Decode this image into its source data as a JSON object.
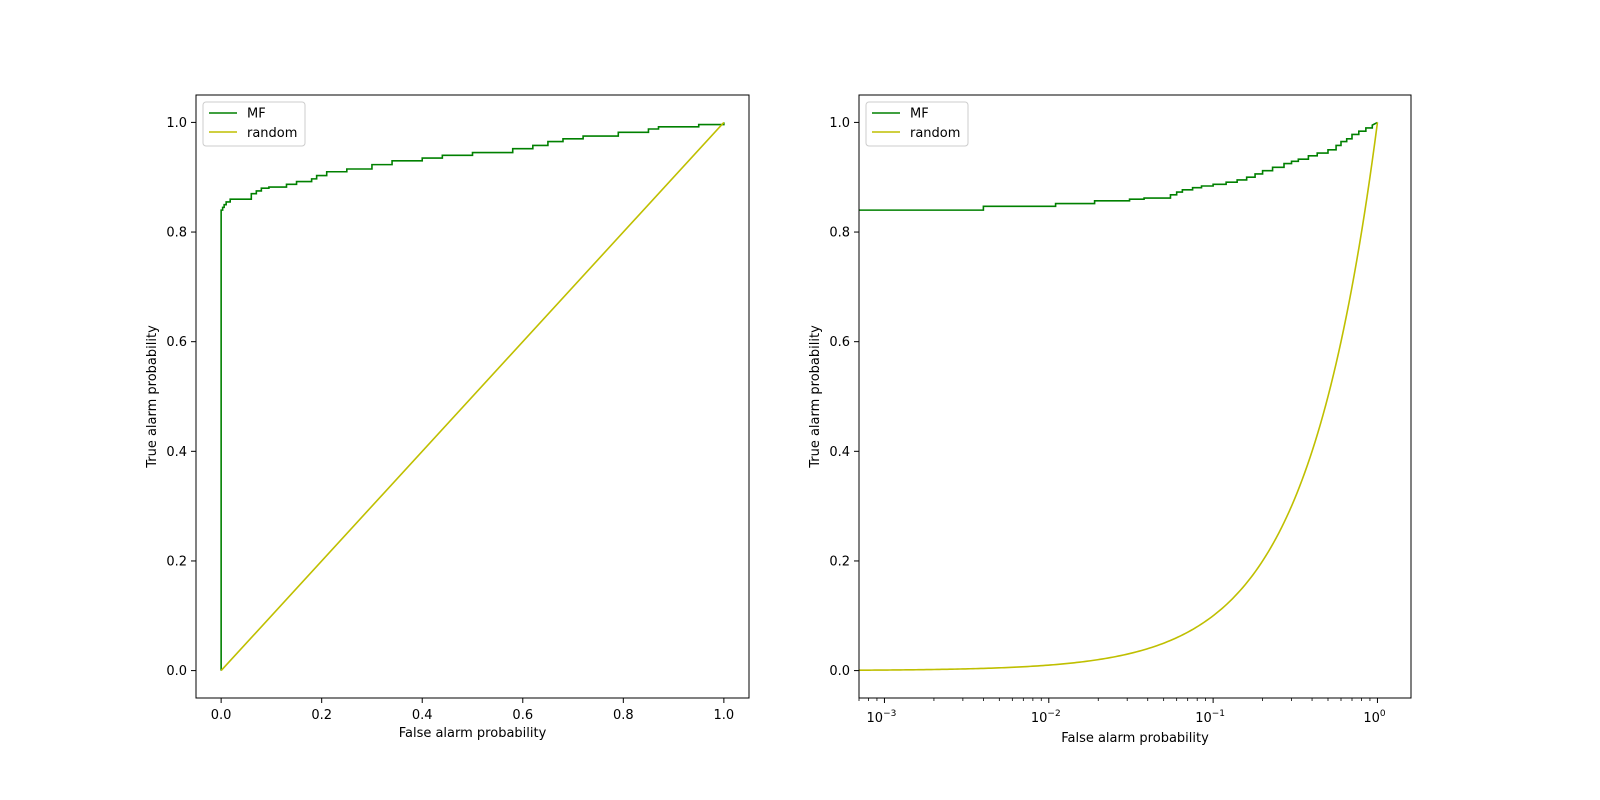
{
  "colors": {
    "mf": "#008000",
    "random": "#bfbf00",
    "axes": "#000000",
    "legend_border": "#cccccc"
  },
  "chart_data": [
    {
      "type": "line",
      "xlabel": "False alarm probability",
      "ylabel": "True alarm probability",
      "xscale": "linear",
      "xlim": [
        -0.05,
        1.05
      ],
      "ylim": [
        -0.05,
        1.05
      ],
      "xticks": [
        0.0,
        0.2,
        0.4,
        0.6,
        0.8,
        1.0
      ],
      "xtick_labels": [
        "0.0",
        "0.2",
        "0.4",
        "0.6",
        "0.8",
        "1.0"
      ],
      "yticks": [
        0.0,
        0.2,
        0.4,
        0.6,
        0.8,
        1.0
      ],
      "ytick_labels": [
        "0.0",
        "0.2",
        "0.4",
        "0.6",
        "0.8",
        "1.0"
      ],
      "legend_position": "upper left",
      "series": [
        {
          "name": "MF",
          "color": "#008000",
          "x": [
            0.0,
            0.0,
            0.003,
            0.003,
            0.006,
            0.006,
            0.01,
            0.01,
            0.018,
            0.018,
            0.06,
            0.06,
            0.07,
            0.07,
            0.08,
            0.08,
            0.095,
            0.095,
            0.13,
            0.13,
            0.15,
            0.15,
            0.18,
            0.18,
            0.19,
            0.19,
            0.21,
            0.21,
            0.25,
            0.25,
            0.3,
            0.3,
            0.34,
            0.34,
            0.4,
            0.4,
            0.44,
            0.44,
            0.5,
            0.5,
            0.58,
            0.58,
            0.62,
            0.62,
            0.65,
            0.65,
            0.68,
            0.68,
            0.72,
            0.72,
            0.79,
            0.79,
            0.85,
            0.85,
            0.87,
            0.87,
            0.95,
            0.95,
            1.0,
            1.0
          ],
          "y": [
            0.0,
            0.84,
            0.84,
            0.845,
            0.845,
            0.85,
            0.85,
            0.855,
            0.855,
            0.86,
            0.86,
            0.87,
            0.87,
            0.875,
            0.875,
            0.88,
            0.88,
            0.882,
            0.882,
            0.887,
            0.887,
            0.892,
            0.892,
            0.897,
            0.897,
            0.903,
            0.903,
            0.91,
            0.91,
            0.915,
            0.915,
            0.923,
            0.923,
            0.93,
            0.93,
            0.935,
            0.935,
            0.94,
            0.94,
            0.945,
            0.945,
            0.952,
            0.952,
            0.958,
            0.958,
            0.965,
            0.965,
            0.97,
            0.97,
            0.975,
            0.975,
            0.982,
            0.982,
            0.988,
            0.988,
            0.992,
            0.992,
            0.996,
            0.996,
            1.0
          ]
        },
        {
          "name": "random",
          "color": "#bfbf00",
          "x": [
            0.0,
            1.0
          ],
          "y": [
            0.0,
            1.0
          ]
        }
      ]
    },
    {
      "type": "line",
      "xlabel": "False alarm probability",
      "ylabel": "True alarm probability",
      "xscale": "log",
      "xlim": [
        0.0007,
        1.6
      ],
      "ylim": [
        -0.05,
        1.05
      ],
      "xticks": [
        0.001,
        0.01,
        0.1,
        1
      ],
      "xtick_labels": [
        [
          "10",
          "−3"
        ],
        [
          "10",
          "−2"
        ],
        [
          "10",
          "−1"
        ],
        [
          "10",
          "0"
        ]
      ],
      "yticks": [
        0.0,
        0.2,
        0.4,
        0.6,
        0.8,
        1.0
      ],
      "ytick_labels": [
        "0.0",
        "0.2",
        "0.4",
        "0.6",
        "0.8",
        "1.0"
      ],
      "legend_position": "upper left",
      "series": [
        {
          "name": "MF",
          "color": "#008000",
          "x": [
            0.0007,
            0.004,
            0.004,
            0.011,
            0.011,
            0.019,
            0.019,
            0.031,
            0.031,
            0.038,
            0.038,
            0.055,
            0.055,
            0.06,
            0.06,
            0.065,
            0.065,
            0.075,
            0.075,
            0.085,
            0.085,
            0.1,
            0.1,
            0.12,
            0.12,
            0.14,
            0.14,
            0.16,
            0.16,
            0.18,
            0.18,
            0.2,
            0.2,
            0.23,
            0.23,
            0.27,
            0.27,
            0.3,
            0.3,
            0.33,
            0.33,
            0.38,
            0.38,
            0.43,
            0.43,
            0.5,
            0.5,
            0.56,
            0.56,
            0.6,
            0.6,
            0.65,
            0.65,
            0.7,
            0.7,
            0.77,
            0.77,
            0.85,
            0.85,
            0.93,
            0.93,
            1.0
          ],
          "y": [
            0.84,
            0.84,
            0.847,
            0.847,
            0.852,
            0.852,
            0.857,
            0.857,
            0.86,
            0.86,
            0.862,
            0.862,
            0.868,
            0.868,
            0.873,
            0.873,
            0.877,
            0.877,
            0.881,
            0.881,
            0.884,
            0.884,
            0.887,
            0.887,
            0.891,
            0.891,
            0.895,
            0.895,
            0.9,
            0.9,
            0.906,
            0.906,
            0.912,
            0.912,
            0.918,
            0.918,
            0.925,
            0.925,
            0.929,
            0.929,
            0.933,
            0.933,
            0.939,
            0.939,
            0.944,
            0.944,
            0.95,
            0.95,
            0.958,
            0.958,
            0.965,
            0.965,
            0.97,
            0.97,
            0.978,
            0.978,
            0.984,
            0.984,
            0.99,
            0.99,
            0.995,
            1.0
          ]
        },
        {
          "name": "random",
          "color": "#bfbf00",
          "function": "identity",
          "x_range": [
            0.0007,
            1.0
          ],
          "y_range": [
            0.0007,
            1.0
          ]
        }
      ]
    }
  ]
}
